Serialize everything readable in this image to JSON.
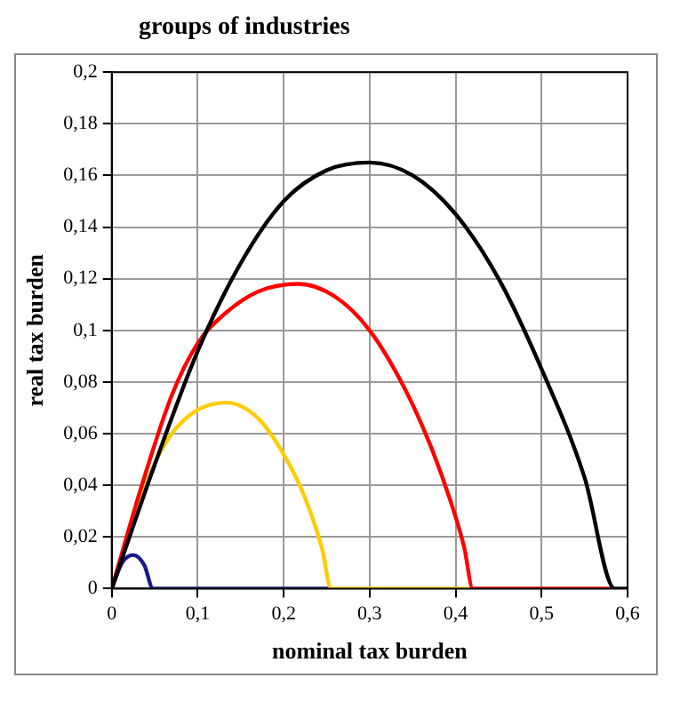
{
  "chart_data": {
    "type": "line",
    "title": "groups of industries",
    "xlabel": "nominal tax burden",
    "ylabel": "real tax burden",
    "xlim": [
      0,
      0.6
    ],
    "ylim": [
      0,
      0.2
    ],
    "xticks": [
      0,
      {
        "value": 0.1,
        "label": "0,1"
      },
      {
        "value": 0.2,
        "label": "0,2"
      },
      {
        "value": 0.3,
        "label": "0,3"
      },
      {
        "value": 0.4,
        "label": "0,4"
      },
      {
        "value": 0.5,
        "label": "0,5"
      },
      {
        "value": 0.6,
        "label": "0,6"
      }
    ],
    "yticks": [
      0,
      {
        "value": 0.02,
        "label": "0,02"
      },
      {
        "value": 0.04,
        "label": "0,04"
      },
      {
        "value": 0.06,
        "label": "0,06"
      },
      {
        "value": 0.08,
        "label": "0,08"
      },
      {
        "value": 0.1,
        "label": "0,1"
      },
      {
        "value": 0.12,
        "label": "0,12"
      },
      {
        "value": 0.14,
        "label": "0,14"
      },
      {
        "value": 0.16,
        "label": "0,16"
      },
      {
        "value": 0.18,
        "label": "0,18"
      },
      {
        "value": 0.2,
        "label": "0,2"
      }
    ],
    "grid": true,
    "legend": false,
    "marker": "none",
    "line_style": "solid",
    "series": [
      {
        "color": "#000000",
        "x": [
          0,
          0.05,
          0.1,
          0.15,
          0.2,
          0.25,
          0.3,
          0.35,
          0.4,
          0.45,
          0.5,
          0.55,
          0.585,
          0.6
        ],
        "values": [
          0,
          0.048,
          0.092,
          0.126,
          0.15,
          0.162,
          0.165,
          0.16,
          0.145,
          0.12,
          0.085,
          0.043,
          0,
          0
        ]
      },
      {
        "color": "#ff0000",
        "x": [
          0,
          0.035,
          0.07,
          0.1,
          0.13,
          0.17,
          0.217,
          0.26,
          0.3,
          0.34,
          0.37,
          0.395,
          0.41,
          0.42,
          0.585
        ],
        "values": [
          0,
          0.04,
          0.075,
          0.095,
          0.106,
          0.115,
          0.118,
          0.113,
          0.1,
          0.078,
          0.056,
          0.033,
          0.016,
          0,
          0
        ]
      },
      {
        "color": "#ffcc00",
        "x": [
          0,
          0.03,
          0.06,
          0.09,
          0.133,
          0.17,
          0.2,
          0.225,
          0.245,
          0.255,
          0.42
        ],
        "values": [
          0,
          0.032,
          0.055,
          0.067,
          0.072,
          0.066,
          0.052,
          0.035,
          0.015,
          0,
          0
        ]
      },
      {
        "color": "#1a1a8c",
        "x": [
          0,
          0.012,
          0.025,
          0.038,
          0.048,
          0.255
        ],
        "values": [
          0,
          0.01,
          0.013,
          0.009,
          0,
          0
        ]
      }
    ]
  }
}
